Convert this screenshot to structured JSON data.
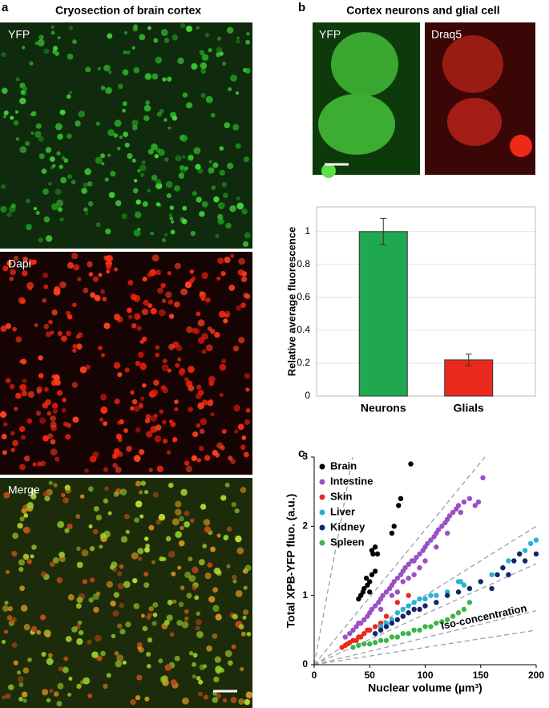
{
  "panels": {
    "a": {
      "label": "a",
      "title": "Cryosection of brain cortex",
      "images": [
        "YFP",
        "Dapi",
        "Merge"
      ]
    },
    "b": {
      "label": "b",
      "title": "Cortex neurons and glial cell",
      "images": [
        "YFP",
        "Draq5"
      ]
    },
    "c": {
      "label": "c"
    }
  },
  "chart_data": [
    {
      "type": "bar",
      "ylabel": "Relative average fluorescence",
      "categories": [
        "Neurons",
        "Glials"
      ],
      "values": [
        1,
        0.22
      ],
      "errors": [
        0.08,
        0.035
      ],
      "colors": [
        "#1fa84f",
        "#e8291c"
      ],
      "ylim": [
        0,
        1.15
      ],
      "yticks": [
        0,
        0.2,
        0.4,
        0.6,
        0.8,
        1
      ],
      "grid": true
    },
    {
      "type": "scatter",
      "xlabel": "Nuclear volume (µm³)",
      "ylabel": "Total XPB-YFP fluo. (a.u.)",
      "xlim": [
        0,
        200
      ],
      "ylim": [
        0,
        3
      ],
      "xticks": [
        0,
        50,
        100,
        150,
        200
      ],
      "yticks": [
        0,
        1,
        2,
        3
      ],
      "legend": "top-left",
      "annotation": "Iso-concentration",
      "reference_slopes": [
        0.0865,
        0.0195,
        0.01,
        0.0073,
        0.0039,
        0.0025
      ],
      "series": [
        {
          "name": "Brain",
          "color": "#000000",
          "x": [
            50,
            48,
            52,
            55,
            45,
            50,
            42,
            47,
            53,
            55,
            52,
            57,
            70,
            72,
            78,
            76,
            87,
            40,
            44
          ],
          "values": [
            1.2,
            1.15,
            1.3,
            1.35,
            1.1,
            1.05,
            1.0,
            1.25,
            1.6,
            1.7,
            1.65,
            1.6,
            1.9,
            2.0,
            2.4,
            2.3,
            2.9,
            0.95,
            1.05
          ]
        },
        {
          "name": "Intestine",
          "color": "#9b4fc6",
          "x": [
            28,
            32,
            35,
            38,
            40,
            42,
            45,
            48,
            50,
            52,
            55,
            58,
            60,
            62,
            65,
            68,
            70,
            72,
            75,
            78,
            80,
            82,
            85,
            88,
            90,
            92,
            95,
            98,
            100,
            102,
            105,
            108,
            110,
            112,
            115,
            118,
            120,
            122,
            125,
            128,
            130,
            132,
            135,
            140,
            145,
            148,
            152,
            60,
            70,
            80,
            90,
            100,
            110,
            120,
            75,
            85,
            95
          ],
          "values": [
            0.4,
            0.45,
            0.5,
            0.55,
            0.6,
            0.6,
            0.65,
            0.7,
            0.75,
            0.8,
            0.85,
            0.9,
            0.95,
            1.0,
            1.05,
            1.1,
            1.15,
            1.2,
            1.25,
            1.3,
            1.35,
            1.4,
            1.45,
            1.5,
            1.5,
            1.55,
            1.6,
            1.65,
            1.7,
            1.75,
            1.8,
            1.85,
            1.9,
            1.95,
            2.0,
            2.05,
            2.1,
            2.15,
            2.2,
            2.25,
            2.3,
            2.2,
            2.35,
            2.4,
            2.3,
            2.35,
            2.7,
            0.8,
            1.0,
            1.2,
            1.3,
            1.5,
            1.7,
            1.9,
            1.05,
            1.25,
            1.4
          ]
        },
        {
          "name": "Skin",
          "color": "#e8291c",
          "x": [
            25,
            28,
            30,
            32,
            35,
            38,
            40,
            42,
            45,
            48,
            50,
            55,
            60,
            65,
            75,
            85
          ],
          "values": [
            0.25,
            0.28,
            0.3,
            0.32,
            0.35,
            0.35,
            0.4,
            0.4,
            0.45,
            0.5,
            0.5,
            0.55,
            0.6,
            0.7,
            0.9,
            1.0
          ]
        },
        {
          "name": "Liver",
          "color": "#27b2d6",
          "x": [
            60,
            65,
            70,
            75,
            80,
            85,
            90,
            95,
            100,
            105,
            110,
            120,
            130,
            132,
            135,
            150,
            160,
            170,
            175,
            185,
            190,
            195,
            200
          ],
          "values": [
            0.55,
            0.6,
            0.65,
            0.75,
            0.8,
            0.85,
            0.9,
            0.95,
            0.95,
            1.0,
            1.0,
            1.05,
            1.2,
            1.2,
            1.15,
            1.2,
            1.3,
            1.4,
            1.5,
            1.6,
            1.65,
            1.75,
            1.8
          ]
        },
        {
          "name": "Kidney",
          "color": "#14256b",
          "x": [
            55,
            60,
            65,
            70,
            75,
            80,
            85,
            90,
            95,
            100,
            110,
            120,
            130,
            140,
            150,
            160,
            165,
            170,
            175,
            180,
            185,
            190,
            200
          ],
          "values": [
            0.45,
            0.5,
            0.55,
            0.6,
            0.65,
            0.7,
            0.75,
            0.8,
            0.8,
            0.85,
            0.9,
            1.0,
            1.05,
            1.1,
            1.2,
            1.1,
            1.3,
            1.4,
            1.3,
            1.5,
            1.6,
            1.5,
            1.6
          ]
        },
        {
          "name": "Spleen",
          "color": "#3cb548",
          "x": [
            35,
            40,
            45,
            50,
            55,
            60,
            65,
            70,
            75,
            80,
            85,
            90,
            95,
            100,
            105,
            110,
            115,
            120,
            125,
            130,
            135,
            140
          ],
          "values": [
            0.25,
            0.28,
            0.3,
            0.3,
            0.32,
            0.35,
            0.35,
            0.4,
            0.4,
            0.45,
            0.45,
            0.5,
            0.5,
            0.55,
            0.55,
            0.6,
            0.62,
            0.65,
            0.7,
            0.75,
            0.8,
            0.9
          ]
        }
      ]
    }
  ]
}
